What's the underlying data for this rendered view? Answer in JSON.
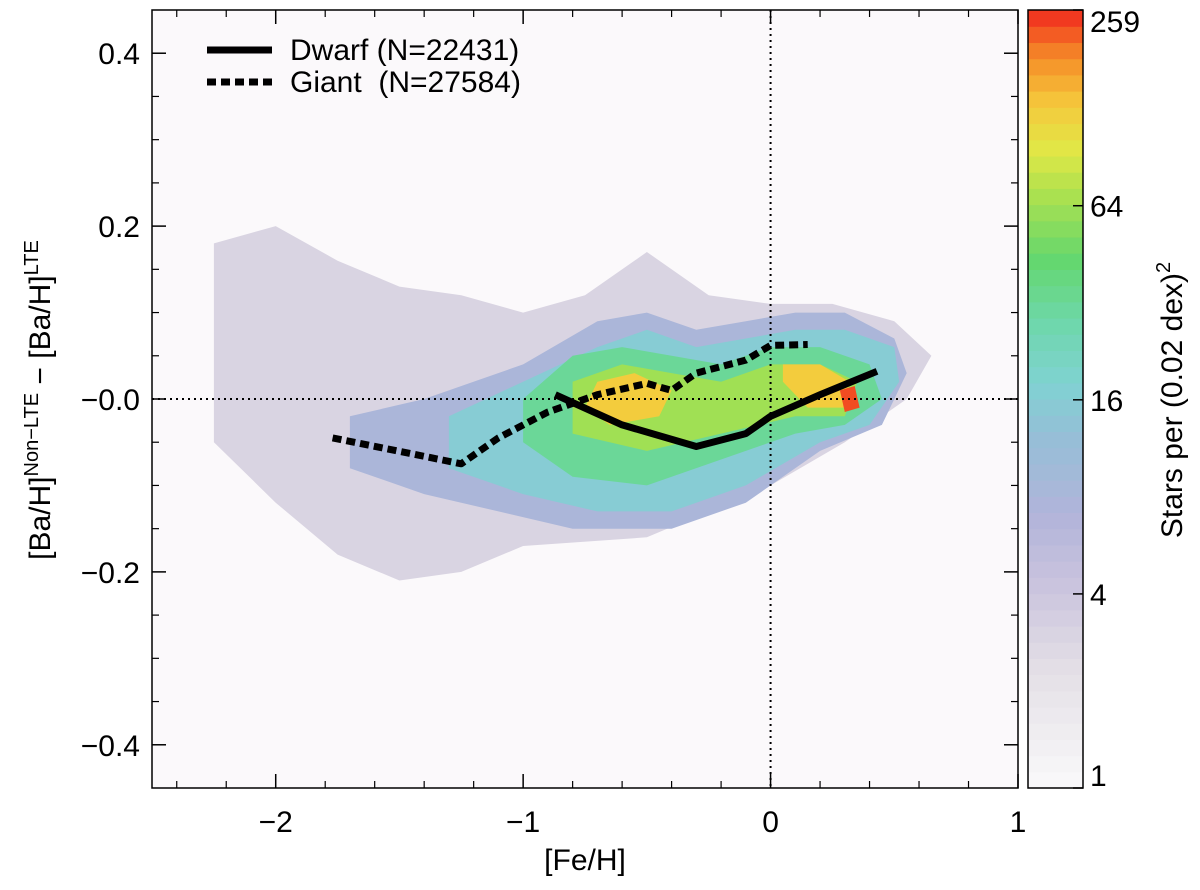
{
  "chart_data": {
    "type": "heatmap",
    "xlabel": "[Fe/H]",
    "ylabel": {
      "part1": "[Ba/H]",
      "sup1": "Non−LTE",
      "part2": " − [Ba/H]",
      "sup2": "LTE"
    },
    "xlim": [
      -2.5,
      1.0
    ],
    "ylim": [
      -0.45,
      0.45
    ],
    "x_ticks": [
      {
        "value": -2,
        "label": "−2"
      },
      {
        "value": -1,
        "label": "−1"
      },
      {
        "value": 0,
        "label": "0"
      },
      {
        "value": 1,
        "label": "1"
      }
    ],
    "y_ticks": [
      {
        "value": 0.4,
        "label": "0.4"
      },
      {
        "value": 0.2,
        "label": "0.2"
      },
      {
        "value": 0.0,
        "label": "−0.0"
      },
      {
        "value": -0.2,
        "label": "−0.2"
      },
      {
        "value": -0.4,
        "label": "−0.4"
      }
    ],
    "reference_lines": {
      "x": 0,
      "y": 0,
      "style": "dotted"
    },
    "colorbar": {
      "label": "Stars per (0.02 dex)",
      "label_sup": "2",
      "scale": "log",
      "min": 1,
      "max": 259,
      "ticks": [
        {
          "value": 1,
          "label": "1"
        },
        {
          "value": 4,
          "label": "4"
        },
        {
          "value": 16,
          "label": "16"
        },
        {
          "value": 64,
          "label": "64"
        },
        {
          "value": 259,
          "label": "259"
        }
      ]
    },
    "series": [
      {
        "name": "Dwarf",
        "legend_label": "Dwarf (N=22431)",
        "count": 22431,
        "style": "solid",
        "x": [
          -0.87,
          -0.6,
          -0.3,
          -0.1,
          0.0,
          0.2,
          0.43
        ],
        "y": [
          0.005,
          -0.03,
          -0.055,
          -0.04,
          -0.02,
          0.005,
          0.032
        ]
      },
      {
        "name": "Giant",
        "legend_label": "Giant  (N=27584)",
        "count": 27584,
        "style": "dashed",
        "x": [
          -1.77,
          -1.25,
          -1.1,
          -0.9,
          -0.7,
          -0.5,
          -0.4,
          -0.3,
          -0.1,
          0.0,
          0.15
        ],
        "y": [
          -0.045,
          -0.075,
          -0.045,
          -0.015,
          0.005,
          0.018,
          0.01,
          0.03,
          0.045,
          0.062,
          0.063
        ]
      }
    ],
    "density_regions": [
      {
        "level": 3,
        "x": [
          -2.25,
          -2.0,
          -1.75,
          -1.5,
          -1.25,
          -1.0,
          -0.75,
          -0.5,
          -0.25,
          0.0,
          0.25,
          0.5,
          0.65,
          0.55,
          0.3,
          0.0,
          -0.5,
          -1.0,
          -1.25,
          -1.5,
          -1.75,
          -2.0,
          -2.25
        ],
        "y": [
          0.18,
          0.2,
          0.16,
          0.13,
          0.12,
          0.1,
          0.12,
          0.17,
          0.12,
          0.11,
          0.11,
          0.09,
          0.05,
          0.0,
          -0.05,
          -0.1,
          -0.16,
          -0.17,
          -0.2,
          -0.21,
          -0.18,
          -0.12,
          -0.05
        ]
      },
      {
        "level": 8,
        "x": [
          -1.7,
          -1.4,
          -1.0,
          -0.7,
          -0.5,
          -0.3,
          -0.1,
          0.1,
          0.3,
          0.5,
          0.55,
          0.45,
          0.2,
          -0.1,
          -0.4,
          -0.8,
          -1.1,
          -1.4,
          -1.7
        ],
        "y": [
          -0.02,
          0.0,
          0.04,
          0.09,
          0.1,
          0.08,
          0.09,
          0.1,
          0.1,
          0.07,
          0.03,
          -0.03,
          -0.06,
          -0.12,
          -0.15,
          -0.15,
          -0.13,
          -0.11,
          -0.08
        ]
      },
      {
        "level": 16,
        "x": [
          -1.3,
          -1.0,
          -0.7,
          -0.5,
          -0.3,
          -0.1,
          0.1,
          0.3,
          0.5,
          0.52,
          0.4,
          0.2,
          -0.1,
          -0.4,
          -0.7,
          -1.0,
          -1.3
        ],
        "y": [
          -0.02,
          0.02,
          0.06,
          0.08,
          0.06,
          0.07,
          0.08,
          0.08,
          0.06,
          0.02,
          -0.03,
          -0.05,
          -0.1,
          -0.13,
          -0.13,
          -0.11,
          -0.08
        ]
      },
      {
        "level": 32,
        "x": [
          -1.0,
          -0.8,
          -0.6,
          -0.4,
          -0.2,
          0.0,
          0.2,
          0.4,
          0.45,
          0.3,
          0.1,
          -0.2,
          -0.5,
          -0.8,
          -1.0
        ],
        "y": [
          0.0,
          0.05,
          0.06,
          0.05,
          0.04,
          0.06,
          0.06,
          0.04,
          0.0,
          -0.03,
          -0.04,
          -0.07,
          -0.1,
          -0.09,
          -0.05
        ]
      },
      {
        "level": 64,
        "x": [
          -0.8,
          -0.6,
          -0.4,
          -0.2,
          0.0,
          0.2,
          0.35,
          0.3,
          0.1,
          -0.2,
          -0.5,
          -0.8
        ],
        "y": [
          0.02,
          0.04,
          0.03,
          0.02,
          0.04,
          0.04,
          0.02,
          -0.02,
          -0.02,
          -0.04,
          -0.06,
          -0.04
        ]
      },
      {
        "level": 128,
        "x": [
          -0.7,
          -0.55,
          -0.4,
          -0.45,
          -0.65,
          -0.75
        ],
        "y": [
          0.02,
          0.03,
          0.01,
          -0.02,
          -0.03,
          -0.01
        ]
      },
      {
        "level": 128,
        "x": [
          0.05,
          0.2,
          0.32,
          0.3,
          0.15,
          0.05
        ],
        "y": [
          0.04,
          0.04,
          0.02,
          -0.01,
          -0.01,
          0.02
        ]
      },
      {
        "level": 230,
        "x": [
          0.28,
          0.34,
          0.36,
          0.3
        ],
        "y": [
          0.01,
          0.015,
          -0.01,
          -0.015
        ]
      }
    ]
  }
}
